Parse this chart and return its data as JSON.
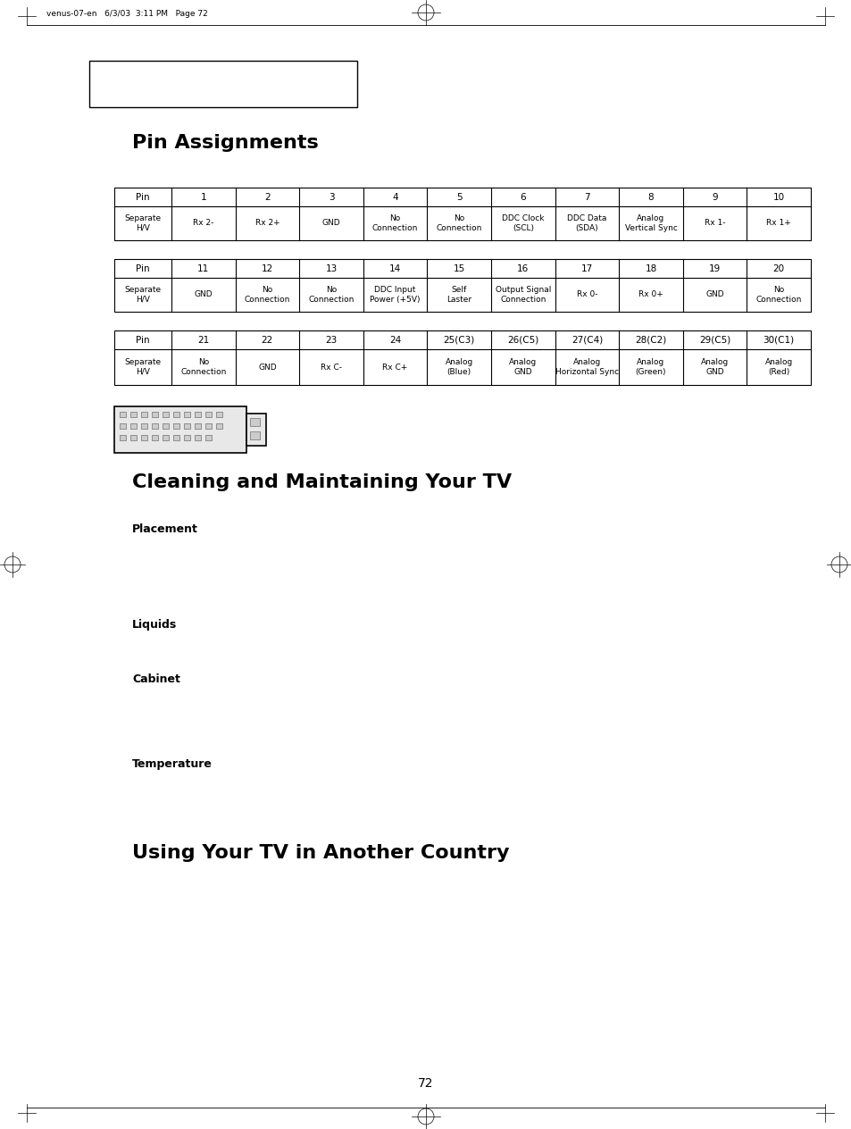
{
  "page_header": "venus-07-en   6/3/03  3:11 PM   Page 72",
  "title_pin": "Pin Assignments",
  "title_cleaning": "Cleaning and Maintaining Your TV",
  "title_using": "Using Your TV in Another Country",
  "section_labels": [
    "Placement",
    "Liquids",
    "Cabinet",
    "Temperature"
  ],
  "page_number": "72",
  "table1": {
    "header": [
      "Pin",
      "1",
      "2",
      "3",
      "4",
      "5",
      "6",
      "7",
      "8",
      "9",
      "10"
    ],
    "row": [
      "Separate\nH/V",
      "Rx 2-",
      "Rx 2+",
      "GND",
      "No\nConnection",
      "No\nConnection",
      "DDC Clock\n(SCL)",
      "DDC Data\n(SDA)",
      "Analog\nVertical Sync",
      "Rx 1-",
      "Rx 1+"
    ]
  },
  "table2": {
    "header": [
      "Pin",
      "11",
      "12",
      "13",
      "14",
      "15",
      "16",
      "17",
      "18",
      "19",
      "20"
    ],
    "row": [
      "Separate\nH/V",
      "GND",
      "No\nConnection",
      "No\nConnection",
      "DDC Input\nPower (+5V)",
      "Self\nLaster",
      "Output Signal\nConnection",
      "Rx 0-",
      "Rx 0+",
      "GND",
      "No\nConnection"
    ]
  },
  "table3": {
    "header": [
      "Pin",
      "21",
      "22",
      "23",
      "24",
      "25(C3)",
      "26(C5)",
      "27(C4)",
      "28(C2)",
      "29(C5)",
      "30(C1)"
    ],
    "row": [
      "Separate\nH/V",
      "No\nConnection",
      "GND",
      "Rx C-",
      "Rx C+",
      "Analog\n(Blue)",
      "Analog\nGND",
      "Analog\nHorizontal Sync",
      "Analog\n(Green)",
      "Analog\nGND",
      "Analog\n(Red)"
    ]
  },
  "bg_color": "#ffffff",
  "text_color": "#000000"
}
